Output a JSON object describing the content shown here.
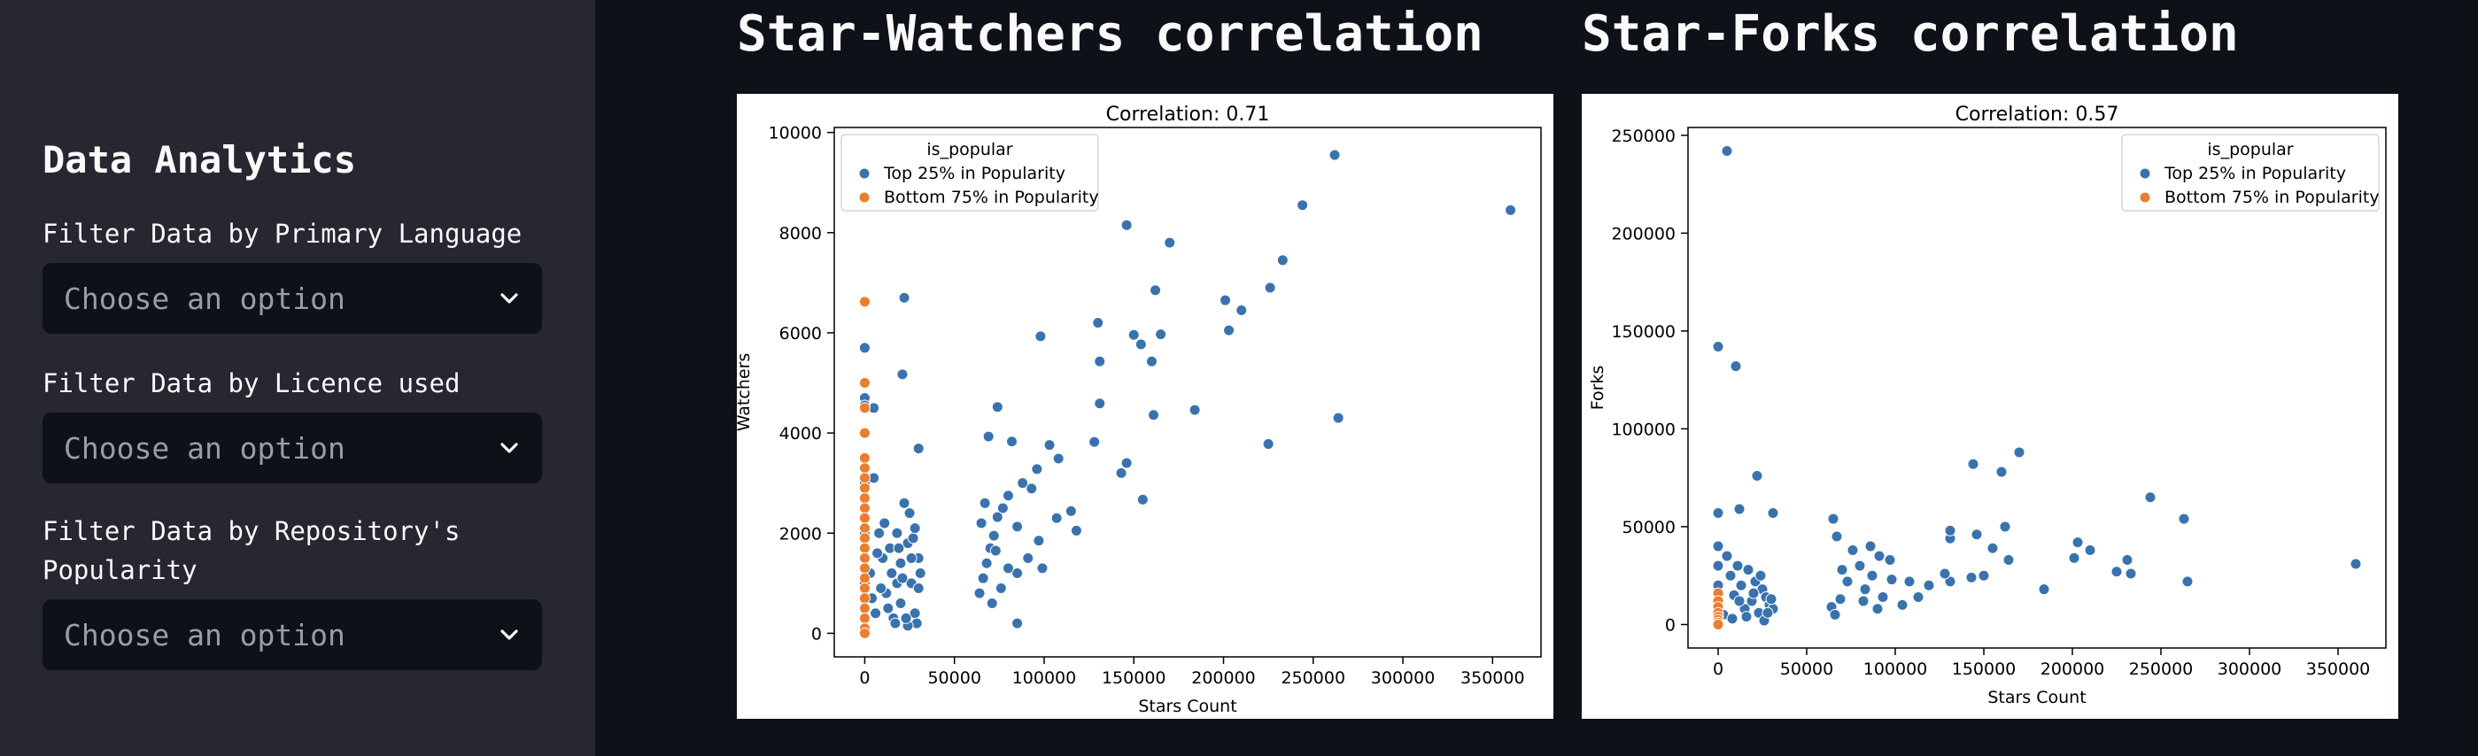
{
  "sidebar": {
    "title": "Data Analytics",
    "filters": [
      {
        "label": "Filter Data by Primary Language",
        "placeholder": "Choose an option"
      },
      {
        "label": "Filter Data by Licence used",
        "placeholder": "Choose an option"
      },
      {
        "label": "Filter Data by Repository's Popularity",
        "placeholder": "Choose an option"
      }
    ]
  },
  "main": {
    "headings": [
      "Star-Watchers correlation",
      "Star-Forks correlation"
    ]
  },
  "colors": {
    "top": "#3a72ad",
    "bottom": "#ea7e2f"
  },
  "chart_data": [
    {
      "type": "scatter",
      "title": "Correlation: 0.71",
      "xlabel": "Stars Count",
      "ylabel": "Watchers",
      "xlim": [
        -17000,
        377000
      ],
      "ylim": [
        -470,
        10100
      ],
      "xticks": [
        0,
        50000,
        100000,
        150000,
        200000,
        250000,
        300000,
        350000
      ],
      "yticks": [
        0,
        2000,
        4000,
        6000,
        8000,
        10000
      ],
      "legend": {
        "title": "is_popular",
        "position": "top-left"
      },
      "series": [
        {
          "name": "Top 25% in Popularity",
          "color": "#3a72ad",
          "points": [
            [
              262000,
              9550
            ],
            [
              360000,
              8450
            ],
            [
              244000,
              8550
            ],
            [
              146000,
              8150
            ],
            [
              170000,
              7800
            ],
            [
              233000,
              7450
            ],
            [
              226000,
              6900
            ],
            [
              162000,
              6850
            ],
            [
              210000,
              6450
            ],
            [
              201000,
              6650
            ],
            [
              203000,
              6050
            ],
            [
              130000,
              6200
            ],
            [
              98000,
              5930
            ],
            [
              165000,
              5970
            ],
            [
              150000,
              5960
            ],
            [
              154000,
              5770
            ],
            [
              160000,
              5430
            ],
            [
              131000,
              5430
            ],
            [
              22000,
              6700
            ],
            [
              21000,
              5170
            ],
            [
              0,
              5700
            ],
            [
              0,
              5000
            ],
            [
              5000,
              4500
            ],
            [
              0,
              4700
            ],
            [
              0,
              4550
            ],
            [
              264000,
              4300
            ],
            [
              225000,
              3780
            ],
            [
              184000,
              4460
            ],
            [
              161000,
              4360
            ],
            [
              131000,
              4590
            ],
            [
              74000,
              4520
            ],
            [
              69000,
              3930
            ],
            [
              82000,
              3830
            ],
            [
              30000,
              3690
            ],
            [
              103000,
              3760
            ],
            [
              108000,
              3490
            ],
            [
              146000,
              3400
            ],
            [
              143000,
              3200
            ],
            [
              155000,
              2670
            ],
            [
              128000,
              3820
            ],
            [
              115000,
              2440
            ],
            [
              118000,
              2050
            ],
            [
              107000,
              2300
            ],
            [
              96000,
              3280
            ],
            [
              93000,
              2890
            ],
            [
              88000,
              3000
            ],
            [
              85000,
              2130
            ],
            [
              80000,
              2750
            ],
            [
              77000,
              2500
            ],
            [
              74000,
              2320
            ],
            [
              72000,
              1950
            ],
            [
              70000,
              1700
            ],
            [
              68000,
              1400
            ],
            [
              66000,
              1100
            ],
            [
              64000,
              800
            ],
            [
              71000,
              600
            ],
            [
              99000,
              1300
            ],
            [
              91000,
              1500
            ],
            [
              97000,
              1850
            ],
            [
              85000,
              1200
            ],
            [
              76000,
              900
            ],
            [
              73000,
              1650
            ],
            [
              65000,
              2200
            ],
            [
              67000,
              2600
            ],
            [
              80000,
              1300
            ],
            [
              0,
              3500
            ],
            [
              0,
              3000
            ],
            [
              0,
              2500
            ],
            [
              0,
              2000
            ],
            [
              0,
              1500
            ],
            [
              0,
              1000
            ],
            [
              0,
              500
            ],
            [
              0,
              100
            ],
            [
              5000,
              3100
            ],
            [
              8000,
              2000
            ],
            [
              10000,
              1500
            ],
            [
              12000,
              800
            ],
            [
              15000,
              1200
            ],
            [
              18000,
              2000
            ],
            [
              20000,
              600
            ],
            [
              22000,
              2600
            ],
            [
              24000,
              1800
            ],
            [
              26000,
              1000
            ],
            [
              28000,
              400
            ],
            [
              30000,
              1500
            ],
            [
              25000,
              2400
            ],
            [
              27000,
              1900
            ],
            [
              18000,
              1000
            ],
            [
              14000,
              1700
            ],
            [
              9000,
              900
            ],
            [
              6000,
              400
            ],
            [
              3000,
              1200
            ],
            [
              16000,
              300
            ],
            [
              29000,
              200
            ],
            [
              24000,
              150
            ],
            [
              20000,
              1400
            ],
            [
              11000,
              2200
            ],
            [
              13000,
              500
            ],
            [
              7000,
              1600
            ],
            [
              4000,
              700
            ],
            [
              21000,
              1100
            ],
            [
              23000,
              300
            ],
            [
              26000,
              1500
            ],
            [
              28000,
              2100
            ],
            [
              30000,
              900
            ],
            [
              31000,
              1200
            ],
            [
              19000,
              1700
            ],
            [
              17000,
              200
            ],
            [
              85000,
              200
            ]
          ]
        },
        {
          "name": "Bottom 75% in Popularity",
          "color": "#ea7e2f",
          "points": [
            [
              0,
              6620
            ],
            [
              0,
              5000
            ],
            [
              0,
              4500
            ],
            [
              0,
              4000
            ],
            [
              0,
              3500
            ],
            [
              0,
              3300
            ],
            [
              0,
              3100
            ],
            [
              0,
              2900
            ],
            [
              0,
              2700
            ],
            [
              0,
              2500
            ],
            [
              0,
              2300
            ],
            [
              0,
              2100
            ],
            [
              0,
              1900
            ],
            [
              0,
              1700
            ],
            [
              0,
              1500
            ],
            [
              0,
              1300
            ],
            [
              0,
              1100
            ],
            [
              0,
              900
            ],
            [
              0,
              700
            ],
            [
              0,
              500
            ],
            [
              0,
              300
            ],
            [
              0,
              100
            ],
            [
              0,
              0
            ]
          ]
        }
      ]
    },
    {
      "type": "scatter",
      "title": "Correlation: 0.57",
      "xlabel": "Stars Count",
      "ylabel": "Forks",
      "xlim": [
        -17000,
        377000
      ],
      "ylim": [
        -12000,
        254000
      ],
      "xticks": [
        0,
        50000,
        100000,
        150000,
        200000,
        250000,
        300000,
        350000
      ],
      "yticks": [
        0,
        50000,
        100000,
        150000,
        200000,
        250000
      ],
      "legend": {
        "title": "is_popular",
        "position": "top-right"
      },
      "series": [
        {
          "name": "Top 25% in Popularity",
          "color": "#3a72ad",
          "points": [
            [
              5000,
              242000
            ],
            [
              0,
              142000
            ],
            [
              10000,
              132000
            ],
            [
              22000,
              76000
            ],
            [
              12000,
              59000
            ],
            [
              0,
              57000
            ],
            [
              31000,
              57000
            ],
            [
              144000,
              82000
            ],
            [
              160000,
              78000
            ],
            [
              170000,
              88000
            ],
            [
              244000,
              65000
            ],
            [
              263000,
              54000
            ],
            [
              360000,
              31000
            ],
            [
              265000,
              22000
            ],
            [
              233000,
              26000
            ],
            [
              225000,
              27000
            ],
            [
              231000,
              33000
            ],
            [
              210000,
              38000
            ],
            [
              201000,
              34000
            ],
            [
              203000,
              42000
            ],
            [
              184000,
              18000
            ],
            [
              162000,
              50000
            ],
            [
              155000,
              39000
            ],
            [
              146000,
              46000
            ],
            [
              131000,
              44000
            ],
            [
              131000,
              48000
            ],
            [
              164000,
              33000
            ],
            [
              150000,
              25000
            ],
            [
              143000,
              24000
            ],
            [
              131000,
              22000
            ],
            [
              128000,
              26000
            ],
            [
              119000,
              20000
            ],
            [
              113000,
              14000
            ],
            [
              108000,
              22000
            ],
            [
              104000,
              10000
            ],
            [
              98000,
              23000
            ],
            [
              97000,
              33000
            ],
            [
              91000,
              35000
            ],
            [
              87000,
              25000
            ],
            [
              83000,
              18000
            ],
            [
              80000,
              30000
            ],
            [
              76000,
              38000
            ],
            [
              73000,
              22000
            ],
            [
              70000,
              28000
            ],
            [
              69000,
              13000
            ],
            [
              67000,
              45000
            ],
            [
              65000,
              54000
            ],
            [
              64000,
              9000
            ],
            [
              66000,
              5000
            ],
            [
              82000,
              12000
            ],
            [
              90000,
              8000
            ],
            [
              93000,
              14000
            ],
            [
              86000,
              40000
            ],
            [
              0,
              30000
            ],
            [
              0,
              20000
            ],
            [
              0,
              10000
            ],
            [
              5000,
              35000
            ],
            [
              7000,
              25000
            ],
            [
              9000,
              15000
            ],
            [
              11000,
              30000
            ],
            [
              13000,
              20000
            ],
            [
              15000,
              8000
            ],
            [
              17000,
              28000
            ],
            [
              19000,
              12000
            ],
            [
              21000,
              22000
            ],
            [
              23000,
              6000
            ],
            [
              25000,
              18000
            ],
            [
              27000,
              14000
            ],
            [
              29000,
              10000
            ],
            [
              31000,
              8000
            ],
            [
              3000,
              5000
            ],
            [
              8000,
              3000
            ],
            [
              12000,
              12000
            ],
            [
              16000,
              4000
            ],
            [
              20000,
              16000
            ],
            [
              24000,
              25000
            ],
            [
              26000,
              2000
            ],
            [
              28000,
              6000
            ],
            [
              30000,
              13000
            ],
            [
              0,
              40000
            ]
          ]
        },
        {
          "name": "Bottom 75% in Popularity",
          "color": "#ea7e2f",
          "points": [
            [
              0,
              16000
            ],
            [
              0,
              12000
            ],
            [
              0,
              9000
            ],
            [
              0,
              6000
            ],
            [
              0,
              4000
            ],
            [
              0,
              2500
            ],
            [
              0,
              1000
            ],
            [
              0,
              0
            ]
          ]
        }
      ]
    }
  ]
}
